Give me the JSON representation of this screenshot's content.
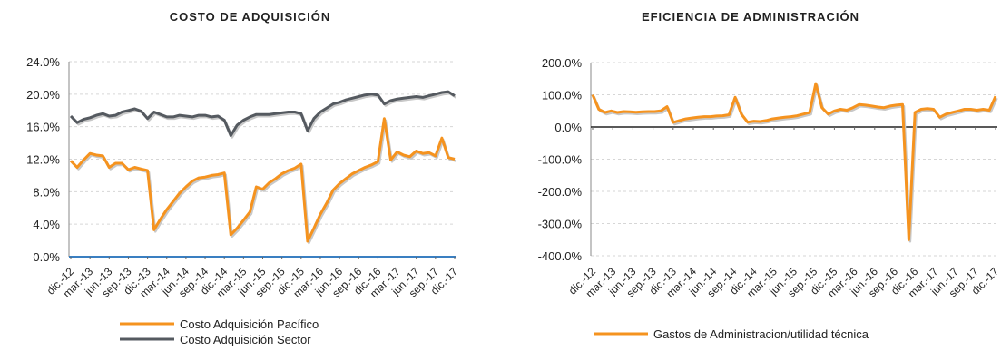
{
  "chart_data": [
    {
      "type": "line",
      "title": "COSTO DE ADQUISICIÓN",
      "xlabel": "",
      "ylabel": "",
      "ylim": [
        0,
        24
      ],
      "y_ticks": [
        "24.0%",
        "20.0%",
        "16.0%",
        "12.0%",
        "8.0%",
        "4.0%",
        "0.0%"
      ],
      "x_tick_labels": [
        "dic.-12",
        "mar.-13",
        "jun.-13",
        "sep.-13",
        "dic.-13",
        "mar.-14",
        "jun.-14",
        "sep.-14",
        "dic.-14",
        "mar.-15",
        "jun.-15",
        "sep.-15",
        "dic.-15",
        "mar.-16",
        "jun.-16",
        "sep.-16",
        "dic.-16",
        "mar.-17",
        "jun.-17",
        "sep.-17",
        "dic.-17"
      ],
      "grid": true,
      "legend_position": "bottom",
      "series": [
        {
          "name": "Costo Adquisición Pacífico",
          "color": "#f5931f",
          "values": [
            11.8,
            11.0,
            11.9,
            12.7,
            12.5,
            12.4,
            11.0,
            11.5,
            11.5,
            10.7,
            11.0,
            10.8,
            10.6,
            3.3,
            4.6,
            5.8,
            6.8,
            7.8,
            8.6,
            9.3,
            9.7,
            9.8,
            10.0,
            10.1,
            10.3,
            2.7,
            3.5,
            4.5,
            5.5,
            8.6,
            8.3,
            9.1,
            9.6,
            10.2,
            10.6,
            10.9,
            11.4,
            1.9,
            3.5,
            5.2,
            6.6,
            8.2,
            9.0,
            9.6,
            10.2,
            10.6,
            11.0,
            11.3,
            11.7,
            17.0,
            11.9,
            12.9,
            12.5,
            12.3,
            13.0,
            12.7,
            12.8,
            12.4,
            14.6,
            12.2,
            12.0
          ]
        },
        {
          "name": "Costo Adquisición Sector",
          "color": "#555a60",
          "values": [
            17.3,
            16.5,
            16.9,
            17.1,
            17.4,
            17.6,
            17.3,
            17.4,
            17.8,
            18.0,
            18.2,
            17.9,
            17.0,
            17.8,
            17.5,
            17.2,
            17.2,
            17.4,
            17.3,
            17.2,
            17.4,
            17.4,
            17.2,
            17.3,
            16.8,
            14.9,
            16.2,
            16.8,
            17.2,
            17.5,
            17.5,
            17.5,
            17.6,
            17.7,
            17.8,
            17.8,
            17.6,
            15.5,
            17.0,
            17.8,
            18.3,
            18.8,
            19.0,
            19.3,
            19.5,
            19.7,
            19.9,
            20.0,
            19.9,
            18.8,
            19.2,
            19.4,
            19.5,
            19.6,
            19.7,
            19.6,
            19.8,
            20.0,
            20.2,
            20.3,
            19.8
          ]
        }
      ]
    },
    {
      "type": "line",
      "title": "EFICIENCIA DE ADMINISTRACIÓN",
      "xlabel": "",
      "ylabel": "",
      "ylim": [
        -400,
        200
      ],
      "y_ticks": [
        "200.0%",
        "100.0%",
        "0.0%",
        "-100.0%",
        "-200.0%",
        "-300.0%",
        "-400.0%"
      ],
      "x_tick_labels": [
        "dic.-12",
        "mar.-13",
        "jun.-13",
        "sep.-13",
        "dic.-13",
        "mar.-14",
        "jun.-14",
        "sep.-14",
        "dic.-14",
        "mar.-15",
        "jun.-15",
        "sep.-15",
        "dic.-15",
        "mar.-16",
        "jun.-16",
        "sep.-16",
        "dic.-16",
        "mar.-17",
        "jun.-17",
        "sep.-17",
        "dic.-17"
      ],
      "grid": true,
      "legend_position": "bottom",
      "series": [
        {
          "name": "Gastos de Administracion/utilidad técnica",
          "color": "#f5931f",
          "values": [
            100,
            55,
            45,
            50,
            45,
            48,
            47,
            46,
            47,
            48,
            48,
            50,
            63,
            14,
            20,
            25,
            28,
            30,
            32,
            32,
            34,
            35,
            38,
            92,
            40,
            15,
            18,
            17,
            20,
            25,
            28,
            30,
            32,
            35,
            40,
            45,
            135,
            60,
            40,
            50,
            55,
            52,
            60,
            70,
            68,
            65,
            62,
            60,
            65,
            68,
            70,
            -350,
            45,
            55,
            57,
            55,
            30,
            40,
            45,
            50,
            55,
            55,
            52,
            55,
            52,
            95
          ]
        }
      ]
    }
  ]
}
